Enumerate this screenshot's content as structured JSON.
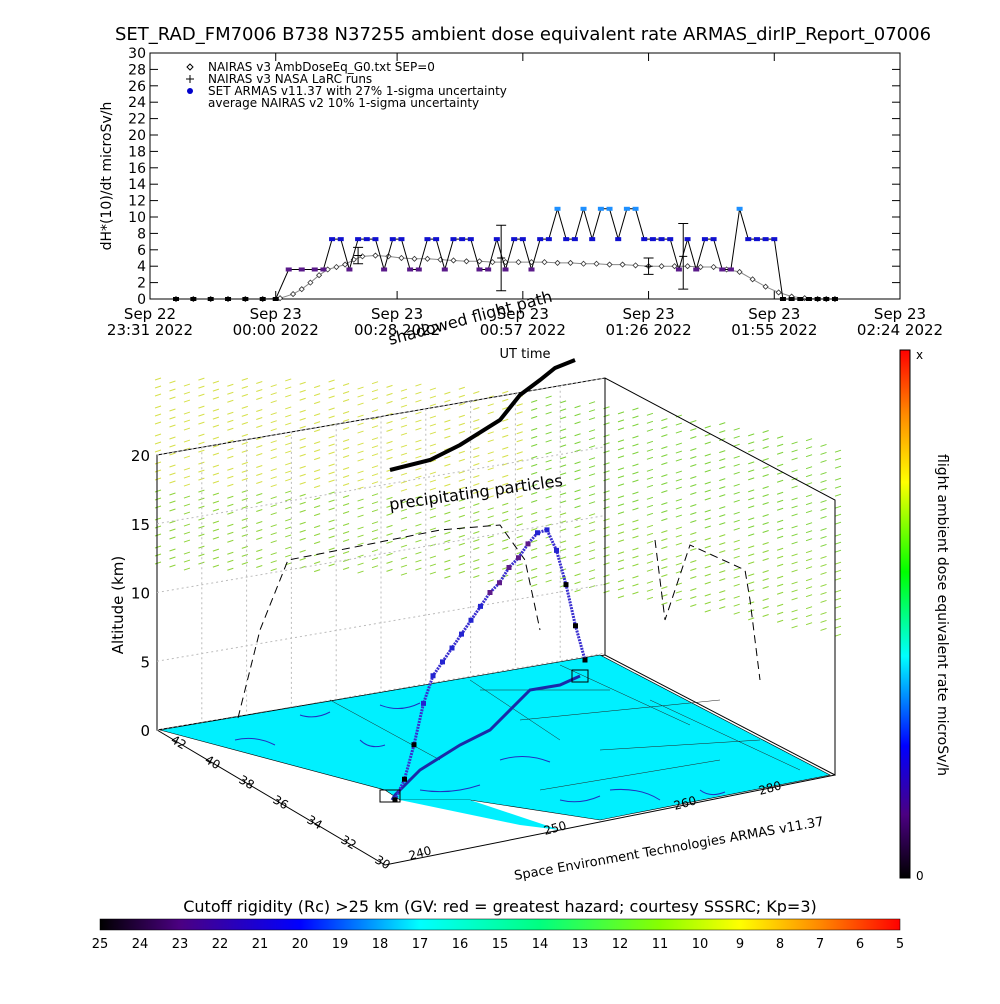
{
  "title": "SET_RAD_FM7006  B738 N37255 ambient dose equivalent rate ARMAS_dirIP_Report_07006",
  "chart_data": [
    {
      "type": "line",
      "name": "time-series",
      "ylabel": "dH*(10)/dt microSv/h",
      "xlabel": "UT time",
      "ylim": [
        0,
        30
      ],
      "yticks": [
        0,
        2,
        4,
        6,
        8,
        10,
        12,
        14,
        16,
        18,
        20,
        22,
        24,
        26,
        28,
        30
      ],
      "xlim_minutes": [
        0,
        173
      ],
      "xticks": [
        {
          "date": "Sep 22",
          "time": "23:31 2022",
          "t": 0
        },
        {
          "date": "Sep 23",
          "time": "00:00 2022",
          "t": 29
        },
        {
          "date": "Sep 23",
          "time": "00:28 2022",
          "t": 57
        },
        {
          "date": "Sep 23",
          "time": "00:57 2022",
          "t": 86
        },
        {
          "date": "Sep 23",
          "time": "01:26 2022",
          "t": 115
        },
        {
          "date": "Sep 23",
          "time": "01:55 2022",
          "t": 144
        },
        {
          "date": "Sep 23",
          "time": "02:24 2022",
          "t": 173
        }
      ],
      "legend": [
        {
          "marker": "diamond",
          "label": "NAIRAS v3 AmbDoseEq_G0.txt SEP=0"
        },
        {
          "marker": "plus",
          "label": "NAIRAS v3 NASA LaRC runs"
        },
        {
          "marker": "dot",
          "label": "SET ARMAS v11.37 with 27% 1-sigma uncertainty"
        },
        {
          "marker": "none",
          "label": "average NAIRAS v2 10% 1-sigma uncertainty"
        }
      ],
      "legend_position": "top-left",
      "series": [
        {
          "name": "NAIRAS v3 AmbDoseEq_G0.txt SEP=0",
          "color": "#555555",
          "x_minutes": [
            6,
            10,
            14,
            18,
            22,
            26,
            30,
            33,
            35,
            37,
            39,
            41,
            43,
            45,
            47,
            49,
            52,
            55,
            58,
            61,
            64,
            67,
            70,
            73,
            76,
            79,
            82,
            85,
            88,
            91,
            94,
            97,
            100,
            103,
            106,
            109,
            112,
            115,
            118,
            121,
            124,
            127,
            130,
            133,
            136,
            139,
            142,
            145,
            148,
            151,
            154,
            156,
            158
          ],
          "y": [
            0,
            0,
            0,
            0,
            0,
            0,
            0.1,
            0.6,
            1.2,
            2,
            2.9,
            3.6,
            3.9,
            4.2,
            4.8,
            5.2,
            5.3,
            5.2,
            5.0,
            4.9,
            4.9,
            4.8,
            4.7,
            4.6,
            4.6,
            4.5,
            4.5,
            4.5,
            4.5,
            4.5,
            4.4,
            4.4,
            4.3,
            4.3,
            4.2,
            4.2,
            4.1,
            4.0,
            4.0,
            4.0,
            4.0,
            3.9,
            3.9,
            3.6,
            3.3,
            2.4,
            1.5,
            0.8,
            0.3,
            0.1,
            0,
            0,
            0
          ]
        },
        {
          "name": "NAIRAS v3 NASA LaRC runs",
          "x_minutes": [
            48,
            81,
            115,
            123
          ],
          "y": [
            5.3,
            5.0,
            4.0,
            5.2
          ],
          "yerr": [
            1.0,
            4.0,
            1.0,
            4.0
          ]
        },
        {
          "name": "SET ARMAS v11.37 with 27% 1-sigma uncertainty",
          "x_minutes": [
            6,
            10,
            14,
            18,
            22,
            26,
            29,
            32,
            35,
            38,
            40,
            42,
            44,
            46,
            48,
            50,
            52,
            54,
            56,
            58,
            60,
            62,
            64,
            66,
            68,
            70,
            72,
            74,
            76,
            78,
            80,
            82,
            84,
            86,
            88,
            90,
            92,
            94,
            96,
            98,
            100,
            102,
            104,
            106,
            108,
            110,
            112,
            114,
            116,
            118,
            120,
            122,
            124,
            126,
            128,
            130,
            132,
            134,
            136,
            138,
            140,
            142,
            144,
            146,
            148,
            150,
            152,
            154,
            156,
            158
          ],
          "y": [
            0,
            0,
            0,
            0,
            0,
            0,
            0,
            3.6,
            3.6,
            3.6,
            3.6,
            7.3,
            7.3,
            3.6,
            7.3,
            7.3,
            7.3,
            3.6,
            7.3,
            7.3,
            3.6,
            3.6,
            7.3,
            7.3,
            3.6,
            7.3,
            7.3,
            7.3,
            3.6,
            3.6,
            7.3,
            3.6,
            7.3,
            7.3,
            3.6,
            7.3,
            7.3,
            11.0,
            7.3,
            7.3,
            11.0,
            7.3,
            11.0,
            11.0,
            7.3,
            11.0,
            11.0,
            7.3,
            7.3,
            7.3,
            7.3,
            3.6,
            7.3,
            3.6,
            7.3,
            7.3,
            3.6,
            3.6,
            11.0,
            7.3,
            7.3,
            7.3,
            7.3,
            0,
            0,
            0,
            0,
            0,
            0,
            0
          ]
        }
      ]
    },
    {
      "type": "scatter",
      "name": "3d-flight-path",
      "zlabel": "Altitude (km)",
      "zticks": [
        0,
        5,
        10,
        15,
        20
      ],
      "lat_ticks": [
        30,
        32,
        34,
        36,
        38,
        40,
        42
      ],
      "lon_ticks": [
        240,
        250,
        260,
        280,
        240
      ],
      "colorbar_label": "flight ambient dose equivalent rate microSv/h",
      "colorbar_top": "x",
      "colorbar_bottom": "0",
      "annotations": [
        "shadowed flight path",
        "precipitating particles"
      ],
      "credit": "Space Environment Technologies ARMAS v11.37",
      "flight_profile": {
        "t_fraction": [
          0,
          0.05,
          0.1,
          0.15,
          0.2,
          0.25,
          0.3,
          0.35,
          0.4,
          0.45,
          0.5,
          0.55,
          0.6,
          0.65,
          0.7,
          0.75,
          0.8,
          0.85,
          0.9,
          0.95,
          1
        ],
        "altitude_km": [
          0,
          1,
          3,
          5.5,
          7,
          7.5,
          8,
          8.5,
          9,
          9.5,
          10,
          10.2,
          10.8,
          11,
          11.5,
          11.8,
          11.5,
          9.5,
          6.5,
          3,
          0
        ]
      }
    },
    {
      "type": "heatmap",
      "name": "cutoff-rigidity-colorbar",
      "label": "Cutoff rigidity (Rc) >25 km (GV: red = greatest hazard; courtesy SSSRC; Kp=3)",
      "ticks": [
        25,
        24,
        23,
        22,
        21,
        20,
        19,
        18,
        17,
        16,
        15,
        14,
        13,
        12,
        11,
        10,
        9,
        8,
        7,
        6,
        5
      ]
    }
  ]
}
